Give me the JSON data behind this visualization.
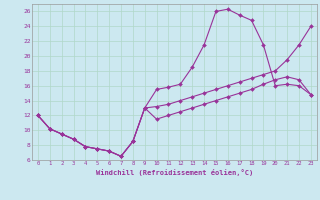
{
  "xlabel": "Windchill (Refroidissement éolien,°C)",
  "bg_color": "#cce8f0",
  "grid_color": "#b0d8c8",
  "line_color": "#993399",
  "xlim": [
    -0.5,
    23.5
  ],
  "ylim": [
    6,
    27
  ],
  "xticks": [
    0,
    1,
    2,
    3,
    4,
    5,
    6,
    7,
    8,
    9,
    10,
    11,
    12,
    13,
    14,
    15,
    16,
    17,
    18,
    19,
    20,
    21,
    22,
    23
  ],
  "yticks": [
    6,
    8,
    10,
    12,
    14,
    16,
    18,
    20,
    22,
    24,
    26
  ],
  "line1_x": [
    0,
    1,
    2,
    3,
    4,
    5,
    6,
    7,
    8,
    9,
    10,
    11,
    12,
    13,
    14,
    15,
    16,
    17,
    18,
    19,
    20,
    21,
    22,
    23
  ],
  "line1_y": [
    12,
    10.2,
    9.5,
    8.8,
    7.8,
    7.5,
    7.2,
    6.5,
    8.5,
    13.0,
    15.5,
    15.8,
    16.2,
    18.5,
    21.5,
    26.0,
    26.3,
    25.5,
    24.8,
    21.5,
    16.0,
    16.2,
    16.0,
    14.8
  ],
  "line2_x": [
    0,
    1,
    2,
    3,
    4,
    5,
    6,
    7,
    8,
    9,
    10,
    11,
    12,
    13,
    14,
    15,
    16,
    17,
    18,
    19,
    20,
    21,
    22,
    23
  ],
  "line2_y": [
    12,
    10.2,
    9.5,
    8.8,
    7.8,
    7.5,
    7.2,
    6.5,
    8.5,
    13.0,
    13.2,
    13.5,
    14.0,
    14.5,
    15.0,
    15.5,
    16.0,
    16.5,
    17.0,
    17.5,
    18.0,
    19.5,
    21.5,
    24.0
  ],
  "line3_x": [
    0,
    1,
    2,
    3,
    4,
    5,
    6,
    7,
    8,
    9,
    10,
    11,
    12,
    13,
    14,
    15,
    16,
    17,
    18,
    19,
    20,
    21,
    22,
    23
  ],
  "line3_y": [
    12,
    10.2,
    9.5,
    8.8,
    7.8,
    7.5,
    7.2,
    6.5,
    8.5,
    13.0,
    11.5,
    12.0,
    12.5,
    13.0,
    13.5,
    14.0,
    14.5,
    15.0,
    15.5,
    16.2,
    16.8,
    17.2,
    16.8,
    14.8
  ]
}
